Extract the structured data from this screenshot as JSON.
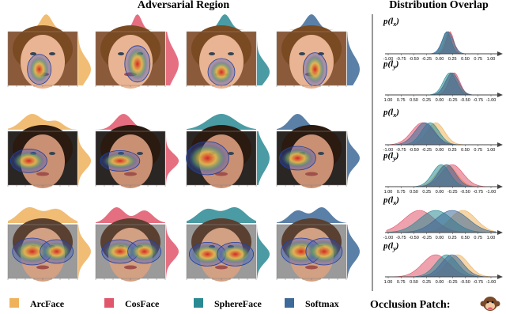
{
  "left_title": "Adversarial Region",
  "right_title": "Distribution Overlap",
  "legend": [
    {
      "label": "ArcFace",
      "color": "#efb25c"
    },
    {
      "label": "CosFace",
      "color": "#e0566b"
    },
    {
      "label": "SphereFace",
      "color": "#2a8a94"
    },
    {
      "label": "Softmax",
      "color": "#3d6a98"
    }
  ],
  "occlusion_label": "Occlusion Patch:",
  "overlap_label_x": {
    "open": "p(l",
    "sub": "x",
    "close": ")"
  },
  "overlap_label_y": {
    "open": "p(l",
    "sub": "y",
    "close": ")"
  },
  "forward_ticks": [
    "-1.00",
    "-0.75",
    "-0.50",
    "-0.25",
    "0.00",
    "0.25",
    "0.50",
    "0.75",
    "1.00"
  ],
  "reverse_ticks": [
    "1.00",
    "0.75",
    "0.50",
    "0.25",
    "0.00",
    "-0.25",
    "-0.50",
    "-0.75",
    "-1.00"
  ]
}
